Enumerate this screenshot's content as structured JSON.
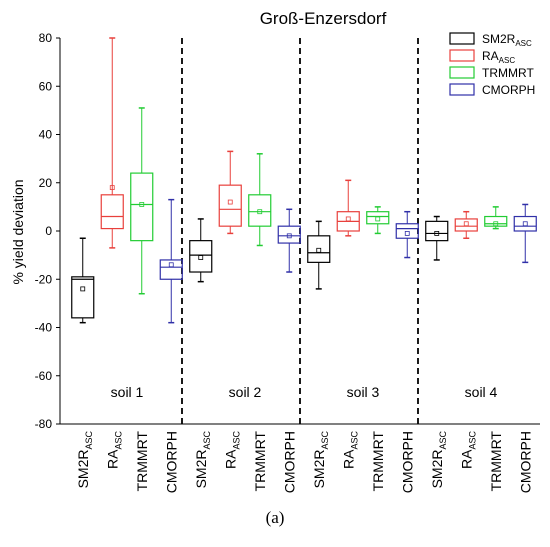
{
  "chart_data": {
    "type": "box",
    "title": "Groß-Enzersdorf",
    "ylabel": "% yield deviation",
    "xlabel": "",
    "ylim": [
      -80,
      80
    ],
    "yticks": [
      80,
      60,
      40,
      20,
      0,
      -20,
      -40,
      -60,
      -80
    ],
    "groups": [
      "soil 1",
      "soil 2",
      "soil 3",
      "soil 4"
    ],
    "categories": [
      {
        "main": "SM2R",
        "sub": "ASC"
      },
      {
        "main": "RA",
        "sub": "ASC"
      },
      {
        "main": "TRMMRT",
        "sub": ""
      },
      {
        "main": "CMORPH",
        "sub": ""
      }
    ],
    "legend": {
      "placement": "top-right",
      "entries": [
        {
          "main": "SM2R",
          "sub": "ASC",
          "color": "#000000"
        },
        {
          "main": "RA",
          "sub": "ASC",
          "color": "#e8403c"
        },
        {
          "main": "TRMMRT",
          "sub": "",
          "color": "#22cc33"
        },
        {
          "main": "CMORPH",
          "sub": "",
          "color": "#3030a8"
        }
      ]
    },
    "series": [
      {
        "legend_index": 0,
        "color": "#000000",
        "boxes": [
          {
            "group": "soil 1",
            "whisker_low": -38,
            "q1": -36,
            "median": -20,
            "q3": -19,
            "whisker_high": -3,
            "mean": -24
          },
          {
            "group": "soil 2",
            "whisker_low": -21,
            "q1": -17,
            "median": -10,
            "q3": -4,
            "whisker_high": 5,
            "mean": -11
          },
          {
            "group": "soil 3",
            "whisker_low": -24,
            "q1": -13,
            "median": -9,
            "q3": -2,
            "whisker_high": 4,
            "mean": -8
          },
          {
            "group": "soil 4",
            "whisker_low": -12,
            "q1": -4,
            "median": -1,
            "q3": 4,
            "whisker_high": 6,
            "mean": -1
          }
        ]
      },
      {
        "legend_index": 1,
        "color": "#e8403c",
        "boxes": [
          {
            "group": "soil 1",
            "whisker_low": -7,
            "q1": 1,
            "median": 6,
            "q3": 15,
            "whisker_high": 80,
            "mean": 18
          },
          {
            "group": "soil 2",
            "whisker_low": -1,
            "q1": 2,
            "median": 9,
            "q3": 19,
            "whisker_high": 33,
            "mean": 12
          },
          {
            "group": "soil 3",
            "whisker_low": -2,
            "q1": 0,
            "median": 4,
            "q3": 8,
            "whisker_high": 21,
            "mean": 5
          },
          {
            "group": "soil 4",
            "whisker_low": -3,
            "q1": 0,
            "median": 2,
            "q3": 5,
            "whisker_high": 8,
            "mean": 3
          }
        ]
      },
      {
        "legend_index": 2,
        "color": "#22cc33",
        "boxes": [
          {
            "group": "soil 1",
            "whisker_low": -26,
            "q1": -4,
            "median": 11,
            "q3": 24,
            "whisker_high": 51,
            "mean": 11
          },
          {
            "group": "soil 2",
            "whisker_low": -6,
            "q1": 2,
            "median": 8,
            "q3": 15,
            "whisker_high": 32,
            "mean": 8
          },
          {
            "group": "soil 3",
            "whisker_low": -1,
            "q1": 3,
            "median": 6,
            "q3": 8,
            "whisker_high": 10,
            "mean": 5
          },
          {
            "group": "soil 4",
            "whisker_low": 1,
            "q1": 2,
            "median": 3,
            "q3": 6,
            "whisker_high": 10,
            "mean": 3
          }
        ]
      },
      {
        "legend_index": 3,
        "color": "#3030a8",
        "boxes": [
          {
            "group": "soil 1",
            "whisker_low": -38,
            "q1": -20,
            "median": -15,
            "q3": -12,
            "whisker_high": 13,
            "mean": -14
          },
          {
            "group": "soil 2",
            "whisker_low": -17,
            "q1": -5,
            "median": -2,
            "q3": 2,
            "whisker_high": 9,
            "mean": -2
          },
          {
            "group": "soil 3",
            "whisker_low": -11,
            "q1": -3,
            "median": 1,
            "q3": 3,
            "whisker_high": 8,
            "mean": -1
          },
          {
            "group": "soil 4",
            "whisker_low": -13,
            "q1": 0,
            "median": 2,
            "q3": 6,
            "whisker_high": 11,
            "mean": 3
          }
        ]
      }
    ],
    "separators": "dashed vertical lines between soils",
    "grid": false
  },
  "caption": "(a)"
}
